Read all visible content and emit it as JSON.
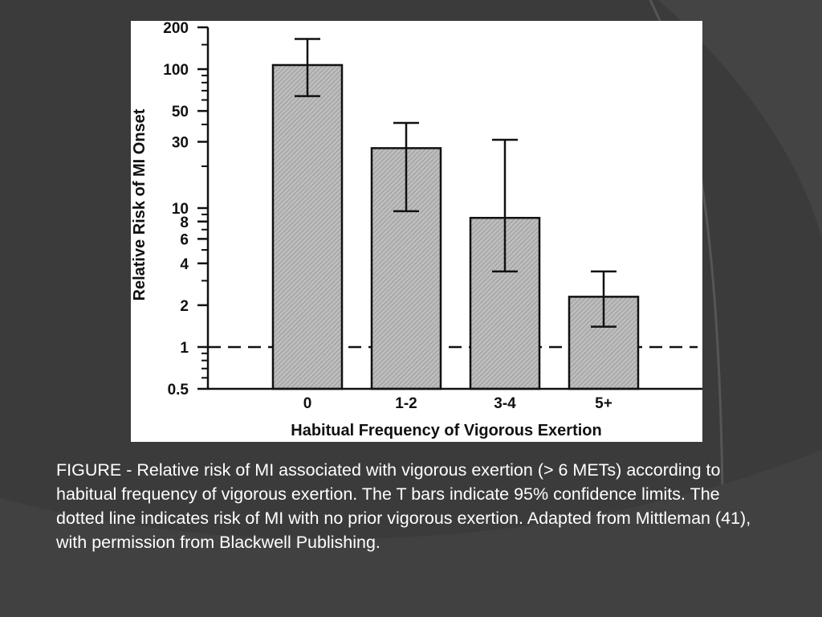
{
  "colors": {
    "slide_background": "#3b3b3b",
    "panel_background": "#ffffff",
    "bar_fill": "#bdbdbd",
    "ink": "#111111",
    "caption_text": "#ffffff"
  },
  "chart_data": {
    "type": "bar",
    "title": "",
    "xlabel": "Habitual Frequency of Vigorous Exertion",
    "ylabel": "Relative Risk of MI Onset",
    "y_scale": "log",
    "ylim": [
      0.5,
      200
    ],
    "y_ticks": [
      "200",
      "100",
      "50",
      "30",
      "10",
      "8",
      "6",
      "4",
      "2",
      "1",
      "0.5"
    ],
    "categories": [
      "0",
      "1-2",
      "3-4",
      "5+"
    ],
    "values": [
      107,
      27,
      8.5,
      2.3
    ],
    "ci_lower": [
      64,
      9.5,
      3.5,
      1.4
    ],
    "ci_upper": [
      165,
      41,
      31,
      3.5
    ],
    "reference_line": {
      "value": 1,
      "style": "dashed"
    },
    "grid": false,
    "legend": "none"
  },
  "caption": {
    "text": "FIGURE - Relative risk of MI associated with vigorous exertion (> 6 METs) according to habitual frequency of vigorous exertion. The T bars indicate 95% confidence limits. The dotted line indicates risk of MI with no prior vigorous exertion. Adapted from Mittleman (41), with permission from Blackwell Publishing."
  }
}
